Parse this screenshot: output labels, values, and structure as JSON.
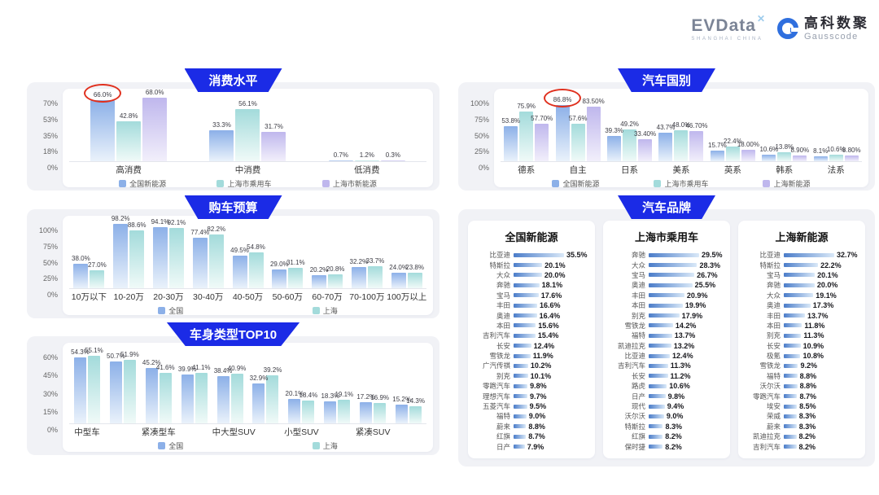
{
  "header": {
    "evdata": {
      "name": "EVData",
      "spark": "✕",
      "subtitle": "SHANGHAI CHINA"
    },
    "gausscode": {
      "cn": "高科数聚",
      "en": "Gausscode"
    }
  },
  "colors": {
    "banner_blue": "#1B2BE6",
    "highlight_red": "#E0301E",
    "panel_gray": "#F1F2F6",
    "series": {
      "blue": [
        "#8CB0E8",
        "#EAF2FB"
      ],
      "teal": [
        "#A3DBDB",
        "#F0FAF8"
      ],
      "purple": [
        "#BFB7ED",
        "#F2EFFB"
      ]
    },
    "brand_bar": [
      "#4A7CC9",
      "#DAE9F8"
    ]
  },
  "chart_data": [
    {
      "type": "bar",
      "title": "消费水平",
      "y_ticks": [
        "70%",
        "53%",
        "35%",
        "18%",
        "0%"
      ],
      "y_max": 70,
      "categories": [
        "高消费",
        "中消费",
        "低消费"
      ],
      "palette": [
        "blue",
        "teal",
        "purple"
      ],
      "legend": [
        "全国新能源",
        "上海市乘用车",
        "上海市新能源"
      ],
      "series": [
        {
          "name": "全国新能源",
          "values": [
            "66.0%",
            "33.3%",
            "0.7%"
          ]
        },
        {
          "name": "上海市乘用车",
          "values": [
            "42.8%",
            "56.1%",
            "1.2%"
          ]
        },
        {
          "name": "上海市新能源",
          "values": [
            "68.0%",
            "31.7%",
            "0.3%"
          ]
        }
      ],
      "circled": {
        "series": 0,
        "category": 0
      }
    },
    {
      "type": "bar",
      "title": "购车预算",
      "y_ticks": [
        "100%",
        "75%",
        "50%",
        "25%",
        "0%"
      ],
      "y_max": 100,
      "categories": [
        "10万以下",
        "10-20万",
        "20-30万",
        "30-40万",
        "40-50万",
        "50-60万",
        "60-70万",
        "70-100万",
        "100万以上"
      ],
      "palette": [
        "blue",
        "teal"
      ],
      "legend": [
        "全国",
        "上海"
      ],
      "series": [
        {
          "name": "全国",
          "values": [
            "38.0%",
            "98.2%",
            "94.1%",
            "77.4%",
            "49.5%",
            "29.0%",
            "20.2%",
            "32.2%",
            "24.0%"
          ]
        },
        {
          "name": "上海",
          "values": [
            "27.0%",
            "88.6%",
            "92.1%",
            "82.2%",
            "54.8%",
            "31.1%",
            "20.8%",
            "33.7%",
            "23.8%"
          ]
        }
      ],
      "circled": null
    },
    {
      "type": "bar",
      "title": "车身类型TOP10",
      "y_ticks": [
        "60%",
        "45%",
        "30%",
        "15%",
        "0%"
      ],
      "y_max": 60,
      "categories": [
        "中型车",
        "",
        "紧凑型车",
        "",
        "中大型SUV",
        "",
        "小型SUV",
        "",
        "紧凑SUV",
        ""
      ],
      "palette": [
        "blue",
        "teal"
      ],
      "legend": [
        "全国",
        "上海"
      ],
      "series": [
        {
          "name": "全国",
          "values": [
            "54.3%",
            "50.7%",
            "45.2%",
            "39.9%",
            "38.4%",
            "32.9%",
            "20.1%",
            "18.3%",
            "17.2%",
            "15.2%"
          ]
        },
        {
          "name": "上海",
          "values": [
            "55.1%",
            "51.9%",
            "41.6%",
            "41.1%",
            "40.9%",
            "39.2%",
            "18.4%",
            "19.1%",
            "16.9%",
            "14.3%"
          ]
        }
      ],
      "circled": null
    },
    {
      "type": "bar",
      "title": "汽车国别",
      "y_ticks": [
        "100%",
        "75%",
        "50%",
        "25%",
        "0%"
      ],
      "y_max": 100,
      "categories": [
        "德系",
        "自主",
        "日系",
        "美系",
        "英系",
        "韩系",
        "法系"
      ],
      "palette": [
        "blue",
        "teal",
        "purple"
      ],
      "legend": [
        "全国新能源",
        "上海市乘用车",
        "上海新能源"
      ],
      "series": [
        {
          "name": "全国新能源",
          "values": [
            "53.8%",
            "86.8%",
            "39.3%",
            "43.7%",
            "15.7%",
            "10.6%",
            "8.1%"
          ]
        },
        {
          "name": "上海市乘用车",
          "values": [
            "75.9%",
            "57.6%",
            "49.2%",
            "48.0%",
            "22.4%",
            "13.8%",
            "10.6%"
          ]
        },
        {
          "name": "上海新能源",
          "values": [
            "57.70%",
            "83.50%",
            "33.40%",
            "46.70%",
            "18.00%",
            "8.90%",
            "8.80%"
          ]
        }
      ],
      "circled": {
        "series": 0,
        "category": 1
      }
    },
    {
      "type": "bar-horizontal",
      "title": "汽车品牌",
      "lists": [
        {
          "title": "全国新能源",
          "items": [
            {
              "name": "比亚迪",
              "label": "35.5%"
            },
            {
              "name": "特斯拉",
              "label": "20.1%"
            },
            {
              "name": "大众",
              "label": "20.0%"
            },
            {
              "name": "奔驰",
              "label": "18.1%"
            },
            {
              "name": "宝马",
              "label": "17.6%"
            },
            {
              "name": "丰田",
              "label": "16.6%"
            },
            {
              "name": "奥迪",
              "label": "16.4%"
            },
            {
              "name": "本田",
              "label": "15.6%"
            },
            {
              "name": "吉利汽车",
              "label": "15.4%"
            },
            {
              "name": "长安",
              "label": "12.4%"
            },
            {
              "name": "雪铁龙",
              "label": "11.9%"
            },
            {
              "name": "广汽传祺",
              "label": "10.2%"
            },
            {
              "name": "别克",
              "label": "10.1%"
            },
            {
              "name": "零跑汽车",
              "label": "9.8%"
            },
            {
              "name": "理想汽车",
              "label": "9.7%"
            },
            {
              "name": "五菱汽车",
              "label": "9.5%"
            },
            {
              "name": "福特",
              "label": "9.0%"
            },
            {
              "name": "蔚来",
              "label": "8.8%"
            },
            {
              "name": "红旗",
              "label": "8.7%"
            },
            {
              "name": "日产",
              "label": "7.9%"
            }
          ]
        },
        {
          "title": "上海市乘用车",
          "items": [
            {
              "name": "奔驰",
              "label": "29.5%"
            },
            {
              "name": "大众",
              "label": "28.3%"
            },
            {
              "name": "宝马",
              "label": "26.7%"
            },
            {
              "name": "奥迪",
              "label": "25.5%"
            },
            {
              "name": "丰田",
              "label": "20.9%"
            },
            {
              "name": "本田",
              "label": "19.9%"
            },
            {
              "name": "别克",
              "label": "17.9%"
            },
            {
              "name": "雪铁龙",
              "label": "14.2%"
            },
            {
              "name": "福特",
              "label": "13.7%"
            },
            {
              "name": "凯迪拉克",
              "label": "13.2%"
            },
            {
              "name": "比亚迪",
              "label": "12.4%"
            },
            {
              "name": "吉利汽车",
              "label": "11.3%"
            },
            {
              "name": "长安",
              "label": "11.2%"
            },
            {
              "name": "路虎",
              "label": "10.6%"
            },
            {
              "name": "日产",
              "label": "9.8%"
            },
            {
              "name": "现代",
              "label": "9.4%"
            },
            {
              "name": "沃尔沃",
              "label": "9.0%"
            },
            {
              "name": "特斯拉",
              "label": "8.3%"
            },
            {
              "name": "红旗",
              "label": "8.2%"
            },
            {
              "name": "保时捷",
              "label": "8.2%"
            }
          ]
        },
        {
          "title": "上海新能源",
          "items": [
            {
              "name": "比亚迪",
              "label": "32.7%"
            },
            {
              "name": "特斯拉",
              "label": "22.2%"
            },
            {
              "name": "宝马",
              "label": "20.1%"
            },
            {
              "name": "奔驰",
              "label": "20.0%"
            },
            {
              "name": "大众",
              "label": "19.1%"
            },
            {
              "name": "奥迪",
              "label": "17.3%"
            },
            {
              "name": "丰田",
              "label": "13.7%"
            },
            {
              "name": "本田",
              "label": "11.8%"
            },
            {
              "name": "别克",
              "label": "11.3%"
            },
            {
              "name": "长安",
              "label": "10.9%"
            },
            {
              "name": "极氪",
              "label": "10.8%"
            },
            {
              "name": "雪铁龙",
              "label": "9.2%"
            },
            {
              "name": "福特",
              "label": "8.8%"
            },
            {
              "name": "沃尔沃",
              "label": "8.8%"
            },
            {
              "name": "零跑汽车",
              "label": "8.7%"
            },
            {
              "name": "埃安",
              "label": "8.5%"
            },
            {
              "name": "荣威",
              "label": "8.3%"
            },
            {
              "name": "蔚来",
              "label": "8.3%"
            },
            {
              "name": "凯迪拉克",
              "label": "8.2%"
            },
            {
              "name": "吉利汽车",
              "label": "8.2%"
            }
          ]
        }
      ]
    }
  ]
}
